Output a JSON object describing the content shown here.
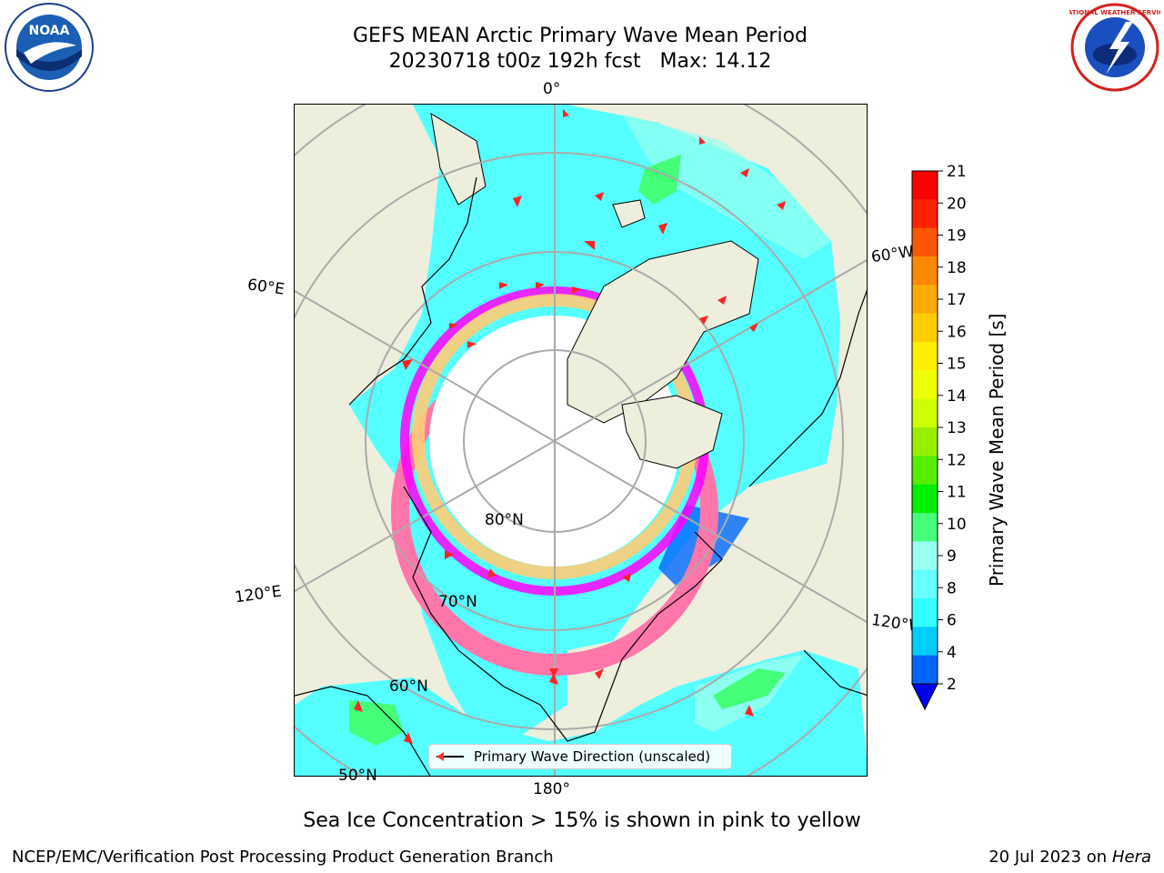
{
  "title": {
    "line1": "GEFS MEAN Arctic Primary Wave Mean Period",
    "line2": "20230718 t00z 192h fcst   Max: 14.12"
  },
  "map": {
    "lon_labels": {
      "top": "0°",
      "left_upper": "60°E",
      "right_upper": "60°W",
      "left_lower": "120°E",
      "right_lower": "120°W",
      "bottom": "180°"
    },
    "lat_labels": {
      "inner": "80°N",
      "middle": "70°N",
      "outer": "60°N",
      "outermost": "50°N"
    },
    "legend": {
      "label": "Primary Wave Direction (unscaled)",
      "arrow_color": "#ff3333"
    },
    "land_color": "#eeeedd",
    "ice_colors": [
      "#ff00ff",
      "#ff77aa",
      "#ffaa66",
      "#ffcc77"
    ],
    "ocean_color": "#55ffff"
  },
  "colorbar": {
    "title": "Primary Wave Mean Period [s]",
    "tick_labels": [
      "2",
      "4",
      "6",
      "8",
      "9",
      "10",
      "11",
      "12",
      "13",
      "14",
      "15",
      "16",
      "17",
      "18",
      "19",
      "20",
      "21"
    ],
    "colors": [
      "#0066ff",
      "#00ccff",
      "#33ffff",
      "#66ffff",
      "#99ffee",
      "#44ff77",
      "#00ee00",
      "#55ee00",
      "#99ee00",
      "#ccff00",
      "#eeff00",
      "#ffee00",
      "#ffcc00",
      "#ffaa00",
      "#ff8800",
      "#ff5500",
      "#ff2200",
      "#ff0000"
    ],
    "extend_color": "#0000ee"
  },
  "caption": "Sea Ice Concentration > 15% is shown in pink to yellow",
  "footer": {
    "left": "NCEP/EMC/Verification Post Processing Product Generation Branch",
    "date": "20 Jul 2023 on ",
    "host": "Hera"
  },
  "logos": {
    "noaa_text": "NOAA",
    "nws_text": "NATIONAL WEATHER SERVICE"
  }
}
